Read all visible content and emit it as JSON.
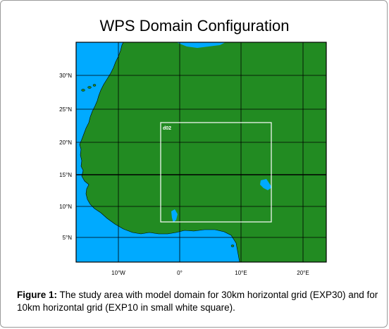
{
  "map": {
    "title": "WPS Domain Configuration",
    "colors": {
      "ocean": "#00aaff",
      "land": "#228b22",
      "grid": "#000000",
      "inner_domain": "#ffffff"
    },
    "lon_labels": [
      "10°W",
      "0°",
      "10°E",
      "20°E"
    ],
    "lat_labels": [
      "30°N",
      "25°N",
      "20°N",
      "15°N",
      "10°N",
      "5°N"
    ],
    "inner_domain": {
      "label": "d02"
    }
  },
  "caption": {
    "label": "Figure 1:",
    "text": " The study area with model domain for 30km horizontal grid (EXP30) and for 10km horizontal grid (EXP10 in small white square)."
  }
}
